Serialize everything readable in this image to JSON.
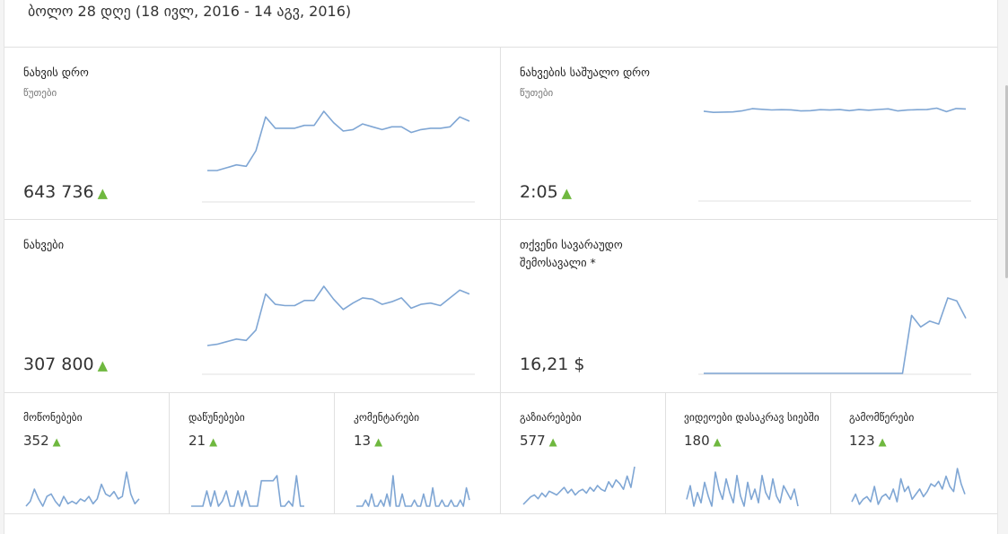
{
  "period_label": "ბოლო 28 დღე (18 ივლ, 2016 - 14 აგვ, 2016)",
  "colors": {
    "line": "#7fa6d4",
    "trend_up": "#6fb83f",
    "divider": "#e0e0e0"
  },
  "trend_icon": "triangle-up-icon",
  "cards": {
    "watch_time": {
      "title": "ნახვის დრო",
      "subtitle": "წუთები",
      "value": "643 736",
      "trend_arrow": "▲",
      "series": [
        6,
        6,
        7,
        8,
        7.5,
        13,
        25,
        21,
        21,
        21,
        22,
        22,
        27,
        23,
        20,
        20.5,
        22.5,
        21.5,
        20.5,
        21.5,
        21.5,
        19.5,
        20.5,
        21,
        21,
        21.5,
        25,
        23.5
      ]
    },
    "avg_view_duration": {
      "title": "ნახვების საშუალო დრო",
      "subtitle": "წუთები",
      "value": "2:05",
      "trend_arrow": "▲",
      "series": [
        20,
        19,
        19.2,
        19.4,
        20.3,
        22,
        21.5,
        21,
        21.2,
        21.1,
        20.2,
        20.4,
        21.2,
        20.9,
        21.3,
        20.4,
        21.3,
        20.8,
        21.4,
        21.9,
        20.2,
        20.9,
        21.2,
        21.3,
        22.5,
        19.6,
        22.2,
        21.8
      ]
    },
    "views": {
      "title": "ნახვები",
      "subtitle": "",
      "value": "307 800",
      "trend_arrow": "▲",
      "series": [
        7,
        7.5,
        8.5,
        9.5,
        9,
        13,
        27,
        23,
        22.5,
        22.5,
        24.5,
        24.5,
        30,
        25,
        21,
        23.5,
        25.5,
        25,
        23,
        24,
        25.5,
        21.5,
        23,
        23.5,
        22.5,
        25.5,
        28.5,
        27
      ]
    },
    "estimated_revenue": {
      "title": "თქვენი სავარაუდო შემოსავალი *",
      "value": "16,21 $",
      "series": [
        0,
        0,
        0,
        0,
        0,
        0,
        0,
        0,
        0,
        0,
        0,
        0,
        0,
        0,
        0,
        0,
        0,
        0,
        0,
        0,
        0,
        0,
        0,
        20,
        16,
        18,
        17,
        26,
        25,
        19
      ]
    }
  },
  "small_cards": [
    {
      "id": "likes",
      "title": "მოწონებები",
      "value": "352",
      "trend_arrow": "▲",
      "series": [
        2,
        4,
        9,
        5,
        2,
        6,
        7,
        4,
        2,
        6,
        3,
        4,
        3,
        5,
        4,
        6,
        3,
        5,
        11,
        7,
        6,
        8,
        5,
        6,
        16,
        7,
        3,
        5
      ]
    },
    {
      "id": "dislikes",
      "title": "დაწუნებები",
      "value": "21",
      "trend_arrow": "▲",
      "series": [
        0,
        0,
        0,
        0,
        3,
        0,
        3,
        0,
        1,
        3,
        0,
        0,
        3,
        0,
        3,
        0,
        0,
        0,
        5,
        5,
        5,
        5,
        6,
        0,
        0,
        1,
        0,
        6,
        0,
        0
      ]
    },
    {
      "id": "comments",
      "title": "კომენტარები",
      "value": "13",
      "trend_arrow": "▲",
      "series": [
        0,
        0,
        0,
        1,
        0,
        2,
        0,
        0,
        1,
        0,
        2,
        0,
        5,
        0,
        0,
        2,
        0,
        0,
        0,
        1,
        0,
        0,
        2,
        0,
        0,
        3,
        0,
        0,
        1,
        0,
        0,
        1,
        0,
        0,
        1,
        0,
        3,
        1
      ]
    },
    {
      "id": "shares",
      "title": "გაზიარებები",
      "value": "577",
      "trend_arrow": "▲",
      "series": [
        1,
        3,
        5,
        6,
        4,
        7,
        5,
        8,
        7,
        6,
        8,
        10,
        7,
        9,
        6,
        8,
        9,
        7,
        10,
        8,
        11,
        9,
        8,
        13,
        10,
        14,
        12,
        9,
        16,
        10,
        21
      ]
    },
    {
      "id": "videos_in_playlists",
      "title": "ვიდეოები დასაკრავ სიებში",
      "value": "180",
      "trend_arrow": "▲",
      "series": [
        4,
        8,
        2,
        6,
        3,
        9,
        5,
        2,
        12,
        7,
        4,
        10,
        6,
        3,
        11,
        5,
        2,
        9,
        4,
        7,
        3,
        11,
        6,
        4,
        10,
        5,
        3,
        8,
        6,
        4,
        7,
        2
      ]
    },
    {
      "id": "subscribers",
      "title": "გამომწერები",
      "value": "123",
      "trend_arrow": "▲",
      "series": [
        3,
        6,
        2,
        4,
        5,
        3,
        9,
        2,
        5,
        6,
        4,
        8,
        3,
        12,
        7,
        9,
        4,
        6,
        8,
        5,
        7,
        10,
        9,
        11,
        8,
        13,
        9,
        7,
        16,
        10,
        6
      ]
    }
  ]
}
